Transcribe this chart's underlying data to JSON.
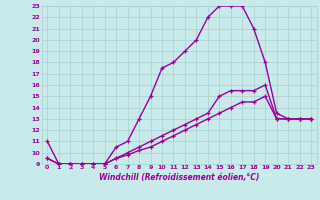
{
  "title": "",
  "xlabel": "Windchill (Refroidissement éolien,°C)",
  "ylabel": "",
  "xlim": [
    -0.5,
    23.5
  ],
  "ylim": [
    9,
    23
  ],
  "xticks": [
    0,
    1,
    2,
    3,
    4,
    5,
    6,
    7,
    8,
    9,
    10,
    11,
    12,
    13,
    14,
    15,
    16,
    17,
    18,
    19,
    20,
    21,
    22,
    23
  ],
  "yticks": [
    9,
    10,
    11,
    12,
    13,
    14,
    15,
    16,
    17,
    18,
    19,
    20,
    21,
    22,
    23
  ],
  "background_color": "#c8eaea",
  "grid_color": "#aacece",
  "line_color": "#990099",
  "line1_x": [
    0,
    1,
    2,
    3,
    4,
    5,
    6,
    7,
    8,
    9,
    10,
    11,
    12,
    13,
    14,
    15,
    16,
    17,
    18,
    19,
    20,
    21,
    22,
    23
  ],
  "line1_y": [
    11,
    9,
    9,
    9,
    9,
    9,
    10.5,
    11,
    13,
    15,
    17.5,
    18,
    19,
    20,
    22,
    23,
    23,
    23,
    21,
    18,
    13.5,
    13,
    13,
    13
  ],
  "line2_x": [
    0,
    1,
    2,
    3,
    4,
    5,
    6,
    7,
    8,
    9,
    10,
    11,
    12,
    13,
    14,
    15,
    16,
    17,
    18,
    19,
    20,
    21,
    22,
    23
  ],
  "line2_y": [
    9.5,
    9,
    9,
    9,
    9,
    9,
    9.5,
    10,
    10.5,
    11,
    11.5,
    12,
    12.5,
    13,
    13.5,
    15,
    15.5,
    15.5,
    15.5,
    16,
    13,
    13,
    13,
    13
  ],
  "line3_x": [
    0,
    1,
    2,
    3,
    4,
    5,
    6,
    7,
    8,
    9,
    10,
    11,
    12,
    13,
    14,
    15,
    16,
    17,
    18,
    19,
    20,
    21,
    22,
    23
  ],
  "line3_y": [
    9.5,
    9,
    9,
    9,
    9,
    9,
    9.5,
    9.8,
    10.2,
    10.5,
    11,
    11.5,
    12,
    12.5,
    13,
    13.5,
    14,
    14.5,
    14.5,
    15,
    13,
    13,
    13,
    13
  ],
  "marker": "+",
  "markersize": 3.5,
  "linewidth": 1.0,
  "tick_fontsize": 4.5,
  "xlabel_fontsize": 5.5
}
